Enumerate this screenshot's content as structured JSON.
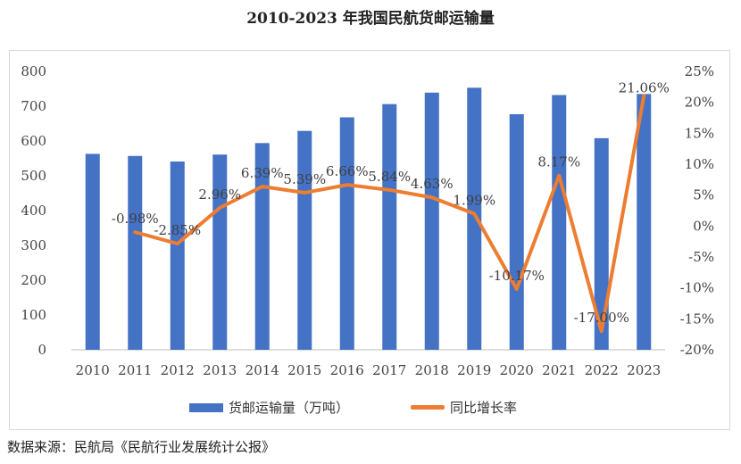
{
  "title": "2010-2023 年我国民航货邮运输量",
  "source": "数据来源：民航局《民航行业发展统计公报》",
  "chart_data": {
    "type": "bar",
    "categories": [
      "2010",
      "2011",
      "2012",
      "2013",
      "2014",
      "2015",
      "2016",
      "2017",
      "2018",
      "2019",
      "2020",
      "2021",
      "2022",
      "2023"
    ],
    "series": [
      {
        "name": "货邮运输量（万吨）",
        "type": "bar",
        "axis": "left",
        "color": "#4472c4",
        "values": [
          563,
          557,
          541,
          561,
          594,
          629,
          668,
          706,
          739,
          753,
          677,
          732,
          608,
          735
        ]
      },
      {
        "name": "同比增长率",
        "type": "line",
        "axis": "right",
        "color": "#ed7d31",
        "values": [
          null,
          -0.98,
          -2.85,
          2.96,
          6.39,
          5.39,
          6.66,
          5.84,
          4.63,
          1.99,
          -10.17,
          8.17,
          -17.0,
          21.06
        ],
        "labels": [
          "",
          "-0.98%",
          "-2.85%",
          "2.96%",
          "6.39%",
          "5.39%",
          "6.66%",
          "5.84%",
          "4.63%",
          "1.99%",
          "-10.17%",
          "8.17%",
          "-17.00%",
          "21.06%"
        ]
      }
    ],
    "y_left": {
      "min": 0,
      "max": 800,
      "ticks": [
        "0",
        "100",
        "200",
        "300",
        "400",
        "500",
        "600",
        "700",
        "800"
      ]
    },
    "y_right": {
      "min": -20,
      "max": 25,
      "ticks": [
        "-20%",
        "-15%",
        "-10%",
        "-5%",
        "0%",
        "5%",
        "10%",
        "15%",
        "20%",
        "25%"
      ]
    },
    "legend_position": "bottom",
    "grid": false
  }
}
